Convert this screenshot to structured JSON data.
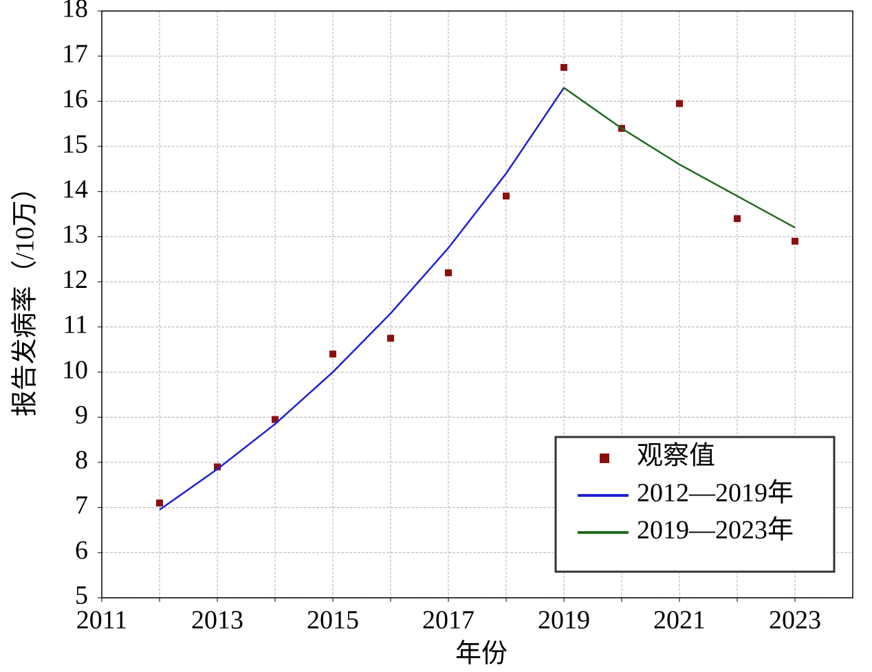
{
  "chart_data": {
    "type": "line",
    "x_label": "年份",
    "y_label": "报告发病率（/10万）",
    "x": [
      2012,
      2013,
      2014,
      2015,
      2016,
      2017,
      2018,
      2019,
      2020,
      2021,
      2022,
      2023
    ],
    "series": [
      {
        "name": "观察值",
        "color": "#8b0f0f",
        "style": "markers",
        "values": [
          7.1,
          7.9,
          8.95,
          10.4,
          10.75,
          12.2,
          13.9,
          16.75,
          15.4,
          15.95,
          13.4,
          12.9
        ]
      },
      {
        "name": "2012—2019年",
        "color": "#1f1fd6",
        "style": "line",
        "values": [
          6.95,
          7.85,
          8.85,
          10.0,
          11.3,
          12.75,
          14.4,
          16.3,
          null,
          null,
          null,
          null
        ]
      },
      {
        "name": "2019—2023年",
        "color": "#1e6b1e",
        "style": "line",
        "values": [
          null,
          null,
          null,
          null,
          null,
          null,
          null,
          16.3,
          15.4,
          14.6,
          13.9,
          13.2
        ]
      }
    ],
    "xlim": [
      2011,
      2024
    ],
    "xticks": [
      2011,
      2013,
      2015,
      2017,
      2019,
      2021,
      2023
    ],
    "x_minor_grid": [
      2012,
      2014,
      2016,
      2018,
      2020,
      2022
    ],
    "ylim": [
      5,
      18
    ],
    "yticks": [
      5,
      6,
      7,
      8,
      9,
      10,
      11,
      12,
      13,
      14,
      15,
      16,
      17,
      18
    ],
    "grid": true,
    "legend": "lower right"
  }
}
